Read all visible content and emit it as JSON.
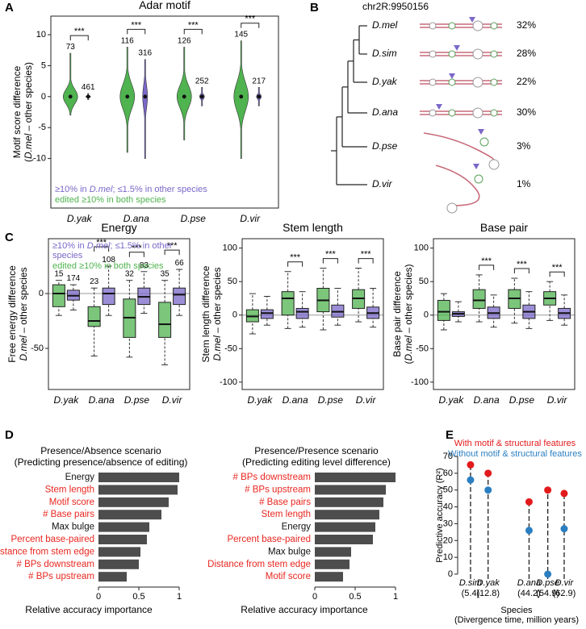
{
  "chart_data": [
    {
      "type": "violin",
      "panel": "A",
      "title": "Adar motif",
      "ylabel": [
        "Motif score difference",
        "(D.mel – other species)"
      ],
      "categories": [
        "D.yak",
        "D.ana",
        "D.pse",
        "D.vir"
      ],
      "series": [
        {
          "name": "≥10% in D.mel; ≤1.5% in other species",
          "color": "#7b68c8",
          "min": [
            -0.5,
            -10,
            -1.5,
            -1.5
          ],
          "median": [
            0,
            0,
            0,
            0
          ],
          "max": [
            0.5,
            6,
            1.5,
            1.5
          ],
          "n": [
            461,
            316,
            252,
            217
          ]
        },
        {
          "name": "edited ≥10% in both species",
          "color": "#4fb34f",
          "min": [
            -3,
            -9,
            -7,
            -10
          ],
          "median": [
            0,
            0,
            0,
            0
          ],
          "max": [
            7,
            8,
            8,
            9
          ],
          "n": [
            73,
            116,
            126,
            145
          ]
        }
      ],
      "legend": "lower left",
      "significance": [
        "***",
        "***",
        "***",
        "***"
      ],
      "ylim": [
        -18,
        13
      ],
      "yticks": [
        -10,
        -5,
        0,
        5,
        10
      ]
    },
    {
      "type": "tree",
      "panel": "B",
      "title": "chr2R:9950156",
      "categories": [
        "D.mel",
        "D.sim",
        "D.yak",
        "D.ana",
        "D.pse",
        "D.vir"
      ],
      "values": [
        32,
        28,
        22,
        30,
        3,
        1
      ],
      "value_labels": [
        "32%",
        "28%",
        "22%",
        "30%",
        "3%",
        "1%"
      ]
    },
    {
      "type": "box",
      "panel": "C",
      "title": "Energy",
      "ylabel": [
        "Free energy difference",
        "D.mel – other species"
      ],
      "categories": [
        "D.yak",
        "D.ana",
        "D.pse",
        "D.vir"
      ],
      "series": [
        {
          "name": "≥10% in D.mel; ≤1.5% in other species",
          "color": "#7b68c8",
          "min": [
            -15,
            -20,
            -18,
            -20
          ],
          "q1": [
            -6,
            -10,
            -10,
            -10
          ],
          "median": [
            -2,
            0,
            -3,
            -1
          ],
          "q3": [
            3,
            5,
            5,
            5
          ],
          "max": [
            8,
            25,
            20,
            22
          ],
          "n": [
            174,
            108,
            83,
            66
          ]
        },
        {
          "name": "edited ≥10% in both species",
          "color": "#4fb34f",
          "min": [
            -20,
            -57,
            -58,
            -65
          ],
          "q1": [
            -12,
            -30,
            -40,
            -40
          ],
          "median": [
            0,
            -25,
            -22,
            -28
          ],
          "q3": [
            8,
            -12,
            -5,
            -8
          ],
          "max": [
            12,
            5,
            12,
            12
          ],
          "n": [
            15,
            23,
            32,
            35
          ]
        }
      ],
      "legend": "upper left",
      "significance": [
        null,
        "***",
        "***",
        "***"
      ],
      "hline": 0,
      "ylim": [
        -87.5,
        50
      ],
      "yticks": [
        -50,
        0
      ]
    },
    {
      "type": "box",
      "title": "Stem length",
      "ylabel": [
        "Stem length difference",
        "D.mel – other species"
      ],
      "categories": [
        "D.yak",
        "D.ana",
        "D.pse",
        "D.vir"
      ],
      "series": [
        {
          "color": "#7b68c8",
          "min": [
            -15,
            -18,
            -15,
            -18
          ],
          "q1": [
            -5,
            -5,
            -3,
            -5
          ],
          "median": [
            3,
            5,
            5,
            3
          ],
          "q3": [
            8,
            10,
            15,
            12
          ],
          "max": [
            28,
            35,
            40,
            40
          ]
        },
        {
          "color": "#4fb34f",
          "min": [
            -28,
            -20,
            -22,
            -10
          ],
          "q1": [
            -10,
            0,
            5,
            10
          ],
          "median": [
            -2,
            25,
            22,
            25
          ],
          "q3": [
            8,
            35,
            40,
            38
          ],
          "max": [
            32,
            65,
            70,
            70
          ]
        }
      ],
      "significance": [
        null,
        "***",
        "***",
        "***"
      ],
      "hline": 0,
      "ylim": [
        -111,
        114
      ],
      "yticks": [
        -100,
        -50,
        0,
        50,
        100
      ]
    },
    {
      "type": "box",
      "title": "Base pair",
      "ylabel": [
        "Base pair difference",
        "(D.mel – other species)"
      ],
      "categories": [
        "D.yak",
        "D.ana",
        "D.pse",
        "D.vir"
      ],
      "series": [
        {
          "color": "#7b68c8",
          "min": [
            -10,
            -18,
            -20,
            -15
          ],
          "q1": [
            -2,
            -5,
            -5,
            -5
          ],
          "median": [
            2,
            3,
            5,
            3
          ],
          "q3": [
            5,
            12,
            15,
            10
          ],
          "max": [
            20,
            30,
            35,
            30
          ]
        },
        {
          "color": "#4fb34f",
          "min": [
            -22,
            -10,
            -12,
            -8
          ],
          "q1": [
            -8,
            10,
            10,
            15
          ],
          "median": [
            5,
            22,
            25,
            25
          ],
          "q3": [
            22,
            38,
            38,
            35
          ],
          "max": [
            32,
            60,
            55,
            50
          ]
        }
      ],
      "significance": [
        null,
        "***",
        "***",
        "***"
      ],
      "hline": 0,
      "ylim": [
        -111,
        114
      ],
      "yticks": [
        -100,
        -50,
        0,
        50,
        100
      ]
    },
    {
      "type": "hbar",
      "panel": "D",
      "title": "Presence/Absence scenario",
      "subtitle": "(Predicting presence/absence of editing)",
      "categories": [
        "Energy",
        "Stem length",
        "Motif score",
        "# Base pairs",
        "Max bulge",
        "Percent base-paired",
        "Distance from stem edge",
        "# BPs downstream",
        "# BPs upstream"
      ],
      "category_colors": [
        "#111111",
        "#e8261f",
        "#e8261f",
        "#e8261f",
        "#111111",
        "#e8261f",
        "#e8261f",
        "#e8261f",
        "#e8261f"
      ],
      "values": [
        1.0,
        0.98,
        0.87,
        0.78,
        0.63,
        0.6,
        0.52,
        0.5,
        0.35
      ],
      "color": "#4d4d4d",
      "xlabel": "Relative accuracy importance",
      "xlim": [
        0,
        1
      ],
      "xticks": [
        0,
        0.5,
        1
      ]
    },
    {
      "type": "hbar",
      "title": "Presence/Presence scenario",
      "subtitle": "(Predicting editing level difference)",
      "categories": [
        "# BPs downstream",
        "# BPs upstream",
        "# Base pairs",
        "Stem length",
        "Energy",
        "Percent base-paired",
        "Max bulge",
        "Distance from stem edge",
        "Motif score"
      ],
      "category_colors": [
        "#e8261f",
        "#e8261f",
        "#e8261f",
        "#e8261f",
        "#111111",
        "#e8261f",
        "#111111",
        "#e8261f",
        "#e8261f"
      ],
      "values": [
        1.0,
        0.88,
        0.85,
        0.8,
        0.75,
        0.72,
        0.45,
        0.43,
        0.35
      ],
      "color": "#4d4d4d",
      "xlabel": "Relative accuracy importance",
      "xlim": [
        0,
        1
      ],
      "xticks": [
        0,
        0.5,
        1
      ]
    },
    {
      "type": "dot",
      "panel": "E",
      "ylabel": "Predictive accuracy (R²)",
      "xlabel": "Species",
      "xlabel_note": "(Divergence time, million years)",
      "categories": [
        "D.sim",
        "D.yak",
        "D.ana",
        "D.pse",
        "D.vir"
      ],
      "category_notes": [
        "(5.4)",
        "(12.8)",
        "(44.2)",
        "(54.9)",
        "(62.9)"
      ],
      "series": [
        {
          "name": "With motif & structural features",
          "color": "#e31a1c",
          "values": [
            65,
            60,
            43,
            50,
            48
          ]
        },
        {
          "name": "Without motif & structural features",
          "color": "#2b7fc1",
          "values": [
            56,
            50,
            26,
            0,
            27
          ]
        }
      ],
      "ylim": [
        0,
        70
      ],
      "yticks": [
        0,
        10,
        20,
        30,
        40,
        50,
        60,
        70
      ]
    }
  ]
}
